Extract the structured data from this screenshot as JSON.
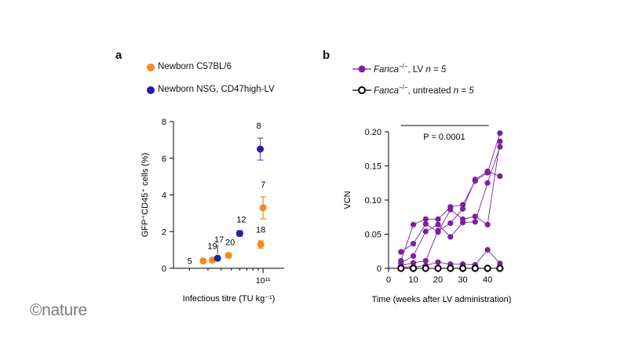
{
  "watermark": "©nature",
  "colors": {
    "orange": "#f28b1c",
    "navy": "#1c22a6",
    "purple": "#7e1fa0",
    "black": "#000000",
    "errorBlue": "#5a60d0"
  },
  "chart_data": [
    {
      "panel": "a",
      "type": "scatter",
      "ylabel": "GFP⁺CD45⁺ cells (%)",
      "xlabel": "Infectious titre (TU kg⁻¹)",
      "xscale": "log",
      "xtick_label": "10¹¹",
      "ylim": [
        0,
        8
      ],
      "yticks": [
        "0",
        "2",
        "4",
        "6",
        "8"
      ],
      "legend": [
        {
          "name": "Newborn C57BL/6",
          "color": "#f28b1c"
        },
        {
          "name": "Newborn NSG, CD47high-LV",
          "color": "#1c22a6"
        }
      ],
      "series": [
        {
          "name": "Newborn C57BL/6",
          "points": [
            {
              "x": 27000000000.0,
              "y": 0.4,
              "err": 0.05,
              "label": "5"
            },
            {
              "x": 33000000000.0,
              "y": 0.45,
              "err": 0.05,
              "label": "19"
            },
            {
              "x": 47000000000.0,
              "y": 0.7,
              "err": 0.1,
              "label": "20"
            },
            {
              "x": 95000000000.0,
              "y": 1.3,
              "err": 0.2,
              "label": "18"
            },
            {
              "x": 100000000000.0,
              "y": 3.3,
              "err": 0.6,
              "label": "7"
            }
          ]
        },
        {
          "name": "Newborn NSG, CD47high-LV",
          "points": [
            {
              "x": 37000000000.0,
              "y": 0.55,
              "err": 0.05,
              "label": "17"
            },
            {
              "x": 60000000000.0,
              "y": 1.9,
              "err": 0.15,
              "label": "12"
            },
            {
              "x": 94000000000.0,
              "y": 6.5,
              "err": 0.6,
              "label": "8"
            }
          ]
        }
      ]
    },
    {
      "panel": "b",
      "type": "line",
      "xlabel": "Time (weeks after LV administration)",
      "ylabel": "VCN",
      "xlim": [
        0,
        46
      ],
      "ylim": [
        0,
        0.2
      ],
      "xticks": [
        "0",
        "10",
        "20",
        "30",
        "40"
      ],
      "yticks": [
        "0",
        "0.05",
        "0.10",
        "0.15",
        "0.20"
      ],
      "annotation": "P = 0.0001",
      "legend": [
        {
          "prefix": "Fanca",
          "sup": "−/−",
          "suffix": ", LV ",
          "n": "n = 5"
        },
        {
          "prefix": "Fanca",
          "sup": "−/−",
          "suffix": ", untreated ",
          "n": "n = 5"
        }
      ],
      "series": [
        {
          "name": "LV mouse 1",
          "x": [
            5,
            10,
            15,
            20,
            25,
            30,
            35,
            40,
            45
          ],
          "y": [
            0.011,
            0.064,
            0.072,
            0.072,
            0.09,
            0.093,
            0.128,
            0.14,
            0.198
          ]
        },
        {
          "name": "LV mouse 2",
          "x": [
            5,
            10,
            15,
            20,
            25,
            30,
            35,
            40,
            45
          ],
          "y": [
            0.024,
            0.036,
            0.065,
            0.053,
            0.086,
            0.072,
            0.076,
            0.064,
            0.186
          ]
        },
        {
          "name": "LV mouse 3",
          "x": [
            5,
            10,
            15,
            20,
            25,
            30,
            35,
            40,
            45
          ],
          "y": [
            0.008,
            0.018,
            0.054,
            0.064,
            0.046,
            0.067,
            0.068,
            0.125,
            0.178
          ]
        },
        {
          "name": "LV mouse 4",
          "x": [
            5,
            10,
            15,
            20,
            25,
            30,
            35,
            40,
            45
          ],
          "y": [
            0.004,
            0.008,
            0.011,
            0.055,
            0.066,
            0.087,
            0.13,
            0.142,
            0.135
          ]
        },
        {
          "name": "LV mouse 5",
          "x": [
            5,
            10,
            15,
            20,
            25,
            30,
            35,
            40,
            45
          ],
          "y": [
            0.001,
            0.002,
            0.004,
            0.009,
            0.006,
            0.006,
            0.005,
            0.027,
            0.007
          ]
        },
        {
          "name": "Untreated",
          "x": [
            5,
            10,
            15,
            20,
            25,
            30,
            35,
            40,
            45
          ],
          "y": [
            0,
            0,
            0,
            0,
            0,
            0,
            0,
            0,
            0
          ]
        }
      ]
    }
  ]
}
